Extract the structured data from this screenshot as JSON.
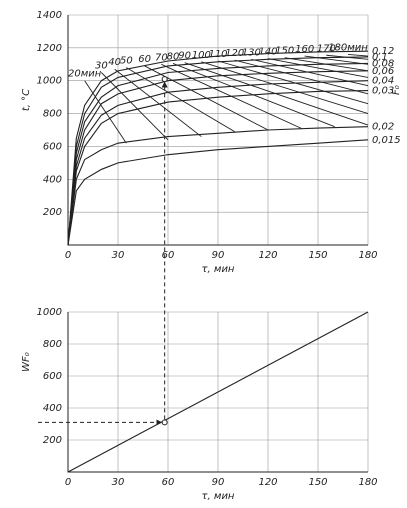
{
  "chart_data": [
    {
      "type": "line",
      "x_label": "τ, мин",
      "y_label": "t, °C",
      "legend_title": "F₀",
      "xlim": [
        0,
        180
      ],
      "ylim": [
        0,
        1400
      ],
      "xticks": [
        0,
        30,
        60,
        90,
        120,
        150,
        180
      ],
      "yticks": [
        200,
        400,
        600,
        800,
        1000,
        1200,
        1400
      ],
      "grid": true,
      "color": "#222",
      "x": [
        0,
        5,
        10,
        20,
        30,
        60,
        90,
        120,
        150,
        180
      ],
      "series": [
        {
          "name": "0,12",
          "values": [
            0,
            650,
            850,
            1000,
            1060,
            1120,
            1150,
            1165,
            1175,
            1180
          ]
        },
        {
          "name": "0,1",
          "values": [
            0,
            600,
            800,
            960,
            1020,
            1090,
            1115,
            1130,
            1140,
            1145
          ]
        },
        {
          "name": "0,08",
          "values": [
            0,
            560,
            750,
            900,
            970,
            1050,
            1075,
            1090,
            1100,
            1105
          ]
        },
        {
          "name": "0,06",
          "values": [
            0,
            520,
            700,
            860,
            920,
            1000,
            1030,
            1045,
            1055,
            1060
          ]
        },
        {
          "name": "0,04",
          "values": [
            0,
            480,
            650,
            790,
            850,
            930,
            960,
            980,
            990,
            1000
          ]
        },
        {
          "name": "0,03",
          "values": [
            0,
            450,
            600,
            740,
            800,
            870,
            900,
            920,
            935,
            940
          ]
        },
        {
          "name": "0,02",
          "values": [
            0,
            400,
            520,
            580,
            620,
            660,
            680,
            700,
            712,
            720
          ]
        },
        {
          "name": "0,015",
          "values": [
            0,
            330,
            400,
            460,
            500,
            550,
            580,
            600,
            620,
            640
          ]
        }
      ],
      "isochrones": [
        {
          "name": "20мин",
          "x": [
            10,
            35
          ],
          "y": [
            1000,
            620
          ]
        },
        {
          "name": "30",
          "x": [
            20,
            60
          ],
          "y": [
            1050,
            640
          ]
        },
        {
          "name": "40",
          "x": [
            28,
            80
          ],
          "y": [
            1070,
            660
          ]
        },
        {
          "name": "50",
          "x": [
            35,
            100
          ],
          "y": [
            1080,
            690
          ]
        },
        {
          "name": "60",
          "x": [
            46,
            120
          ],
          "y": [
            1090,
            700
          ]
        },
        {
          "name": "70",
          "x": [
            56,
            140
          ],
          "y": [
            1100,
            710
          ]
        },
        {
          "name": "80",
          "x": [
            63,
            160
          ],
          "y": [
            1105,
            720
          ]
        },
        {
          "name": "90",
          "x": [
            70,
            180
          ],
          "y": [
            1110,
            730
          ]
        },
        {
          "name": "100",
          "x": [
            80,
            180
          ],
          "y": [
            1115,
            800
          ]
        },
        {
          "name": "110",
          "x": [
            90,
            180
          ],
          "y": [
            1120,
            860
          ]
        },
        {
          "name": "120",
          "x": [
            100,
            180
          ],
          "y": [
            1125,
            920
          ]
        },
        {
          "name": "130",
          "x": [
            110,
            180
          ],
          "y": [
            1130,
            970
          ]
        },
        {
          "name": "140",
          "x": [
            120,
            180
          ],
          "y": [
            1135,
            1020
          ]
        },
        {
          "name": "150",
          "x": [
            130,
            180
          ],
          "y": [
            1140,
            1060
          ]
        },
        {
          "name": "160",
          "x": [
            142,
            180
          ],
          "y": [
            1150,
            1100
          ]
        },
        {
          "name": "170",
          "x": [
            155,
            180
          ],
          "y": [
            1155,
            1130
          ]
        },
        {
          "name": "180мин",
          "x": [
            168,
            180
          ],
          "y": [
            1160,
            1150
          ]
        }
      ],
      "marker": {
        "x": 58,
        "y": 1010
      }
    },
    {
      "type": "line",
      "x_label": "τ, мин",
      "y_label": "WF₀",
      "xlim": [
        0,
        180
      ],
      "ylim": [
        0,
        1000
      ],
      "xticks": [
        0,
        30,
        60,
        90,
        120,
        150,
        180
      ],
      "yticks": [
        200,
        400,
        600,
        800,
        1000
      ],
      "grid": true,
      "color": "#222",
      "x": [
        0,
        180
      ],
      "series": [
        {
          "values": [
            0,
            1000
          ]
        }
      ],
      "marker": {
        "x": 58,
        "y": 310
      }
    }
  ]
}
